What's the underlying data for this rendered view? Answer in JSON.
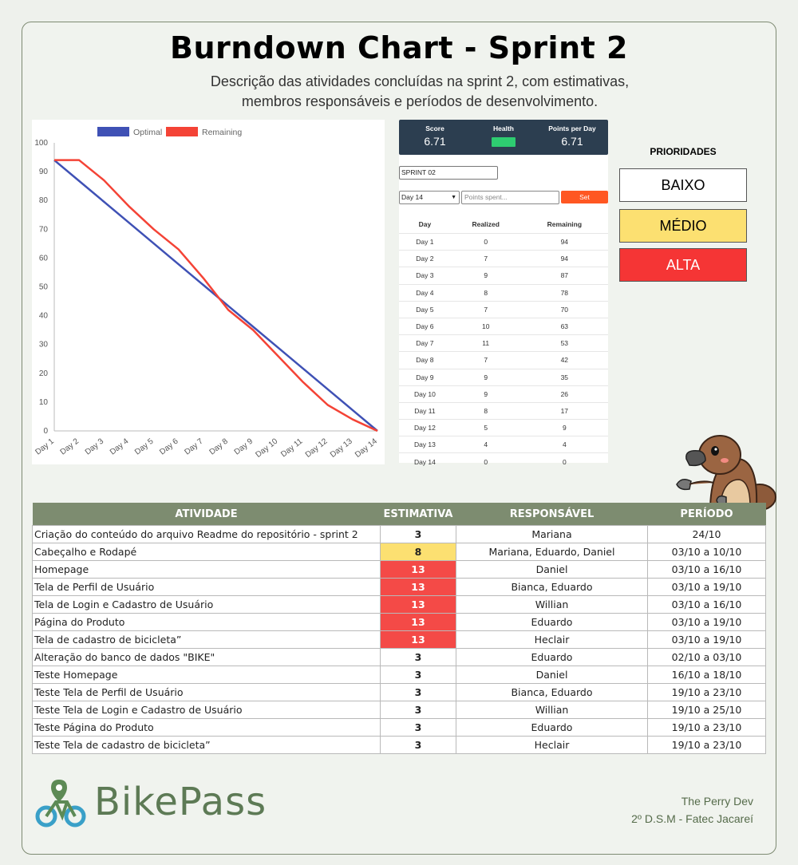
{
  "title": "Burndown Chart - Sprint 2",
  "subtitle_line1": "Descrição das atividades concluídas na sprint 2, com estimativas,",
  "subtitle_line2": "membros responsáveis e períodos de desenvolvimento.",
  "chart_data": {
    "type": "line",
    "categories": [
      "Day 1",
      "Day 2",
      "Day 3",
      "Day 4",
      "Day 5",
      "Day 6",
      "Day 7",
      "Day 8",
      "Day 9",
      "Day 10",
      "Day 11",
      "Day 12",
      "Day 13",
      "Day 14"
    ],
    "series": [
      {
        "name": "Optimal",
        "color": "#3f51b5",
        "values": [
          94,
          86.77,
          79.54,
          72.31,
          65.08,
          57.85,
          50.62,
          43.38,
          36.15,
          28.92,
          21.69,
          14.46,
          7.23,
          0
        ]
      },
      {
        "name": "Remaining",
        "color": "#f44336",
        "values": [
          94,
          94,
          87,
          78,
          70,
          63,
          53,
          42,
          35,
          26,
          17,
          9,
          4,
          0
        ]
      }
    ],
    "ylim": [
      0,
      100
    ],
    "yticks": [
      0,
      10,
      20,
      30,
      40,
      50,
      60,
      70,
      80,
      90,
      100
    ],
    "legend": "top",
    "grid": false
  },
  "tracker": {
    "score_label": "Score",
    "score_value": "6.71",
    "health_label": "Health",
    "health_color": "#2ecc71",
    "ppd_label": "Points per Day",
    "ppd_value": "6.71",
    "sprint_name": "SPRINT 02",
    "day_selected": "Day 14",
    "points_placeholder": "Points spent...",
    "set_label": "Set",
    "col_day": "Day",
    "col_realized": "Realized",
    "col_remaining": "Remaining",
    "rows": [
      {
        "day": "Day 1",
        "realized": "0",
        "remaining": "94"
      },
      {
        "day": "Day 2",
        "realized": "7",
        "remaining": "94"
      },
      {
        "day": "Day 3",
        "realized": "9",
        "remaining": "87"
      },
      {
        "day": "Day 4",
        "realized": "8",
        "remaining": "78"
      },
      {
        "day": "Day 5",
        "realized": "7",
        "remaining": "70"
      },
      {
        "day": "Day 6",
        "realized": "10",
        "remaining": "63"
      },
      {
        "day": "Day 7",
        "realized": "11",
        "remaining": "53"
      },
      {
        "day": "Day 8",
        "realized": "7",
        "remaining": "42"
      },
      {
        "day": "Day 9",
        "realized": "9",
        "remaining": "35"
      },
      {
        "day": "Day 10",
        "realized": "9",
        "remaining": "26"
      },
      {
        "day": "Day 11",
        "realized": "8",
        "remaining": "17"
      },
      {
        "day": "Day 12",
        "realized": "5",
        "remaining": "9"
      },
      {
        "day": "Day 13",
        "realized": "4",
        "remaining": "4"
      },
      {
        "day": "Day 14",
        "realized": "0",
        "remaining": "0"
      }
    ]
  },
  "priorities": {
    "title": "PRIORIDADES",
    "low": {
      "label": "BAIXO",
      "color": "#ffffff"
    },
    "medium": {
      "label": "MÉDIO",
      "color": "#fce071"
    },
    "high": {
      "label": "ALTA",
      "color": "#f53535"
    }
  },
  "activities": {
    "headers": [
      "ATIVIDADE",
      "ESTIMATIVA",
      "RESPONSÁVEL",
      "PERÍODO"
    ],
    "rows": [
      {
        "name": "Criação do conteúdo do arquivo Readme do repositório - sprint 2",
        "estimate": "3",
        "priority": "low",
        "owner": "Mariana",
        "period": "24/10"
      },
      {
        "name": "Cabeçalho e Rodapé",
        "estimate": "8",
        "priority": "medium",
        "owner": "Mariana, Eduardo, Daniel",
        "period": "03/10 a 10/10"
      },
      {
        "name": "Homepage",
        "estimate": "13",
        "priority": "high",
        "owner": "Daniel",
        "period": "03/10 a 16/10"
      },
      {
        "name": "Tela de Perfil de Usuário",
        "estimate": "13",
        "priority": "high",
        "owner": "Bianca, Eduardo",
        "period": "03/10 a 19/10"
      },
      {
        "name": "Tela de Login e Cadastro de Usuário",
        "estimate": "13",
        "priority": "high",
        "owner": "Willian",
        "period": "03/10 a 16/10"
      },
      {
        "name": "Página do Produto",
        "estimate": "13",
        "priority": "high",
        "owner": "Eduardo",
        "period": "03/10 a 19/10"
      },
      {
        "name": "Tela de cadastro de bicicleta”",
        "estimate": "13",
        "priority": "high",
        "owner": "Heclair",
        "period": "03/10 a 19/10"
      },
      {
        "name": "Alteração do banco de dados \"BIKE\"",
        "estimate": "3",
        "priority": "low",
        "owner": "Eduardo",
        "period": "02/10 a 03/10"
      },
      {
        "name": "Teste Homepage",
        "estimate": "3",
        "priority": "low",
        "owner": "Daniel",
        "period": "16/10 a 18/10"
      },
      {
        "name": "Teste Tela de Perfil de Usuário",
        "estimate": "3",
        "priority": "low",
        "owner": "Bianca, Eduardo",
        "period": "19/10 a 23/10"
      },
      {
        "name": "Teste Tela de Login e Cadastro de Usuário",
        "estimate": "3",
        "priority": "low",
        "owner": "Willian",
        "period": "19/10 a 25/10"
      },
      {
        "name": "Teste Página do Produto",
        "estimate": "3",
        "priority": "low",
        "owner": "Eduardo",
        "period": "19/10 a 23/10"
      },
      {
        "name": "Teste Tela de cadastro de bicicleta”",
        "estimate": "3",
        "priority": "low",
        "owner": "Heclair",
        "period": "19/10 a 23/10"
      }
    ]
  },
  "logo_text": "BikePass",
  "team_name": "The Perry Dev",
  "team_course": "2º D.S.M - Fatec Jacareí"
}
